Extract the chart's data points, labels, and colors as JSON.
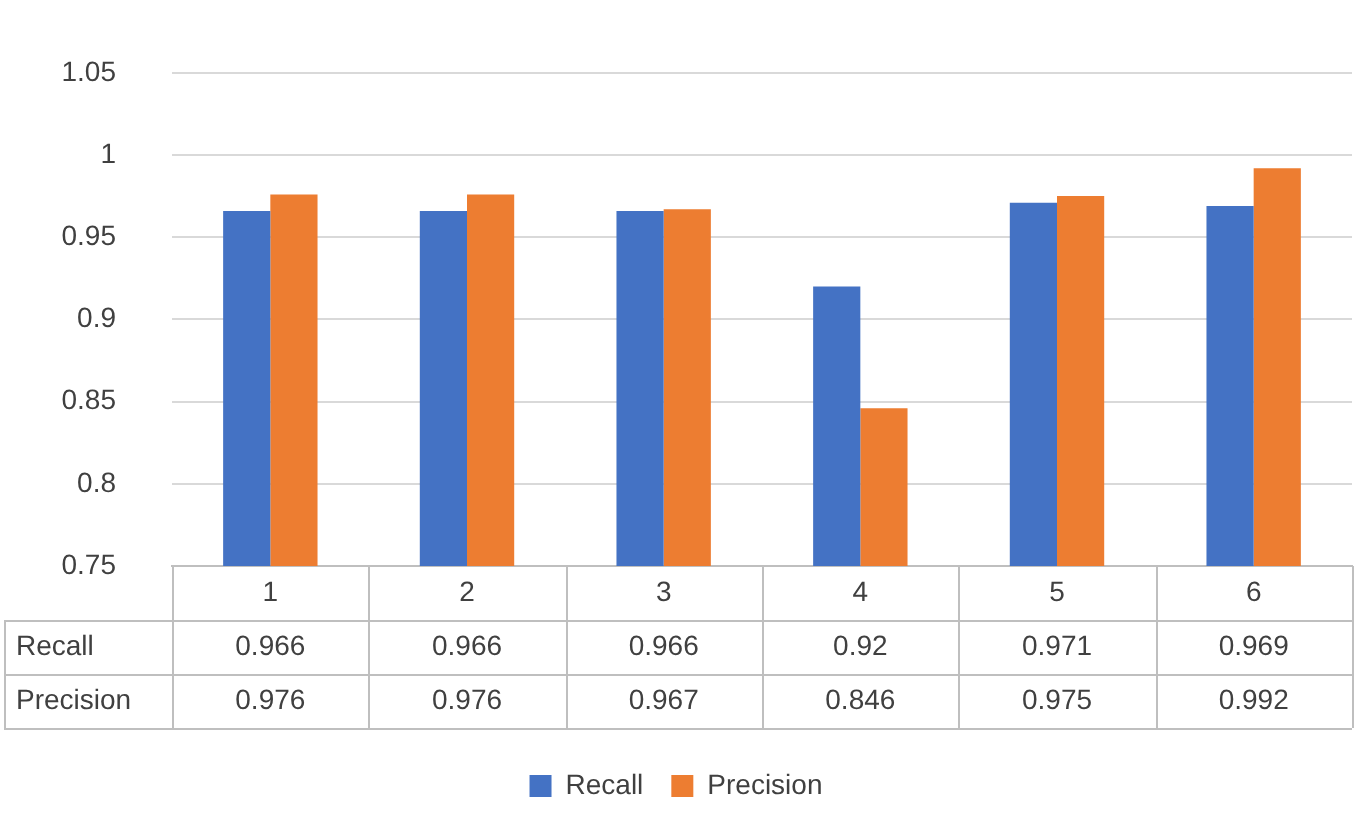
{
  "chart_data": {
    "type": "bar",
    "categories": [
      "1",
      "2",
      "3",
      "4",
      "5",
      "6"
    ],
    "series": [
      {
        "name": "Recall",
        "color": "#4472c4",
        "values": [
          0.966,
          0.966,
          0.966,
          0.92,
          0.971,
          0.969
        ]
      },
      {
        "name": "Precision",
        "color": "#ed7d31",
        "values": [
          0.976,
          0.976,
          0.967,
          0.846,
          0.975,
          0.992
        ]
      }
    ],
    "ylim": [
      0.75,
      1.05
    ],
    "yticks": [
      0.75,
      0.8,
      0.85,
      0.9,
      0.95,
      1,
      1.05
    ],
    "grid": "y",
    "legend": "bottom",
    "data_labels": true
  }
}
